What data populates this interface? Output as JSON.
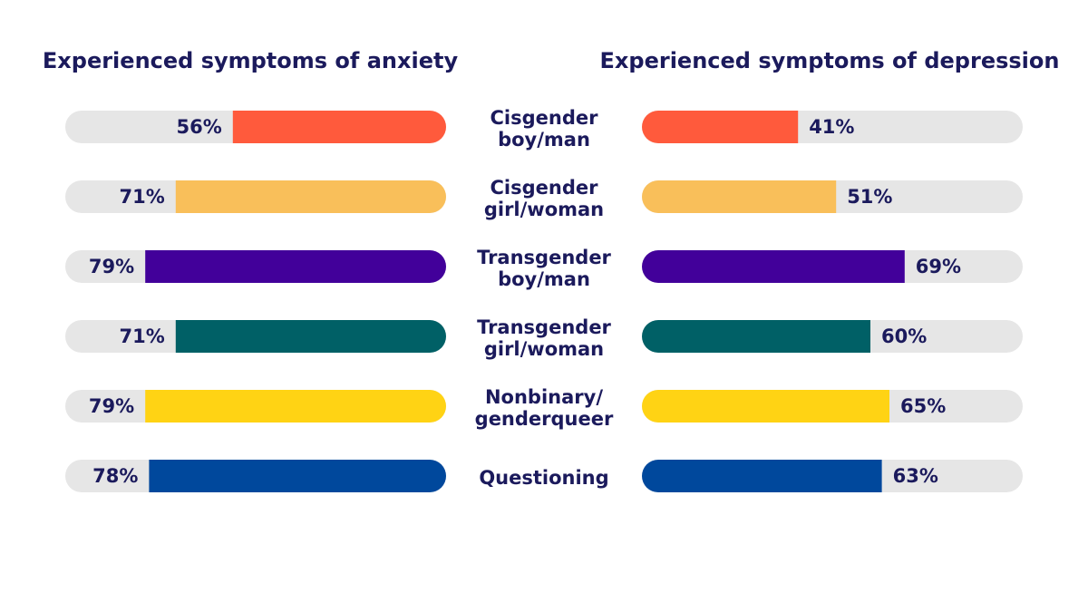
{
  "chart_data": {
    "type": "bar",
    "categories": [
      "Cisgender\nboy/man",
      "Cisgender\ngirl/woman",
      "Transgender\nboy/man",
      "Transgender\ngirl/woman",
      "Nonbinary/\ngenderqueer",
      "Questioning"
    ],
    "colors": [
      "#ff5a3c",
      "#f9bf5a",
      "#42009a",
      "#006066",
      "#ffd314",
      "#00489c"
    ],
    "track_color": "#e6e6e6",
    "xlim": [
      0,
      100
    ],
    "series": [
      {
        "name": "Experienced symptoms of anxiety",
        "values": [
          56,
          71,
          79,
          71,
          79,
          78
        ],
        "value_labels": [
          "56%",
          "71%",
          "79%",
          "71%",
          "79%",
          "78%"
        ]
      },
      {
        "name": "Experienced symptoms of depression",
        "values": [
          41,
          51,
          69,
          60,
          65,
          63
        ],
        "value_labels": [
          "41%",
          "51%",
          "69%",
          "60%",
          "65%",
          "63%"
        ]
      }
    ]
  }
}
